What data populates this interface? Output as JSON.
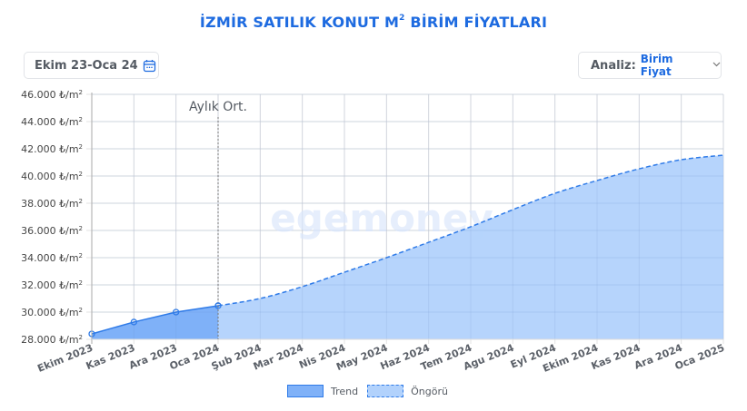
{
  "header": {
    "title": "İZMİR SATILIK KONUT M",
    "title_sup": "2",
    "title_suffix": " BİRİM FİYATLARI"
  },
  "controls": {
    "date_range": {
      "label": "Ekim 23-Oca 24",
      "icon": "calendar-icon"
    },
    "analysis": {
      "label": "Analiz:",
      "value": "Birim Fiyat",
      "icon": "chevron-down-icon"
    }
  },
  "watermark": "egemoney",
  "colors": {
    "title": "#1e6be0",
    "trend_fill": "#7fb1f8",
    "forecast_fill": "#b2d2fc",
    "line": "#2f7be8",
    "grid": "#e3e3e3"
  },
  "chart_data": {
    "type": "area",
    "title": "İZMİR SATILIK KONUT M² BİRİM FİYATLARI",
    "xlabel": "",
    "ylabel": "₺/m²",
    "ylim": [
      28000,
      46000
    ],
    "y_ticks": [
      28000,
      30000,
      32000,
      34000,
      36000,
      38000,
      40000,
      42000,
      44000,
      46000
    ],
    "y_tick_labels": [
      "28.000 ₺/m²",
      "30.000 ₺/m²",
      "32.000 ₺/m²",
      "34.000 ₺/m²",
      "36.000 ₺/m²",
      "38.000 ₺/m²",
      "40.000 ₺/m²",
      "42.000 ₺/m²",
      "44.000 ₺/m²",
      "46.000 ₺/m²"
    ],
    "grid": true,
    "legend_position": "bottom",
    "categories": [
      "Ekim 2023",
      "Kas 2023",
      "Ara 2023",
      "Oca 2024",
      "Şub 2024",
      "Mar 2024",
      "Nis 2024",
      "May 2024",
      "Haz 2024",
      "Tem 2024",
      "Agu 2024",
      "Eyl 2024",
      "Ekim 2024",
      "Kas 2024",
      "Ara 2024",
      "Oca 2025"
    ],
    "series": [
      {
        "name": "Trend",
        "style": "solid",
        "values": [
          28400,
          29270,
          30000,
          30470,
          null,
          null,
          null,
          null,
          null,
          null,
          null,
          null,
          null,
          null,
          null,
          null
        ]
      },
      {
        "name": "Öngörü",
        "style": "dashed",
        "values": [
          null,
          null,
          null,
          30470,
          31000,
          31870,
          32930,
          34000,
          35130,
          36270,
          37530,
          38730,
          39670,
          40530,
          41200,
          41530
        ]
      }
    ],
    "annotations": [
      {
        "type": "vertical-line",
        "x": "Oca 2024",
        "label": "Aylık Ort."
      }
    ]
  },
  "legend": [
    {
      "label": "Trend"
    },
    {
      "label": "Öngörü"
    }
  ]
}
